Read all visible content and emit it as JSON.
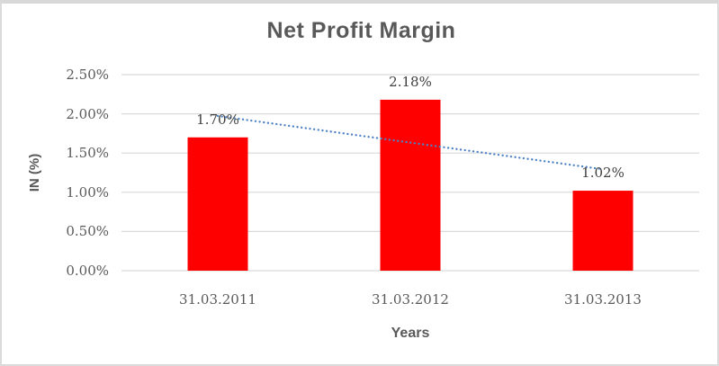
{
  "chart_data": {
    "type": "bar",
    "title": "Net Profit Margin",
    "xlabel": "Years",
    "ylabel": "IN (%)",
    "categories": [
      "31.03.2011",
      "31.03.2012",
      "31.03.2013"
    ],
    "values": [
      1.7,
      2.18,
      1.02
    ],
    "data_labels": [
      "1.70%",
      "2.18%",
      "1.02%"
    ],
    "ylim": [
      0,
      2.5
    ],
    "ytick_step": 0.5,
    "ytick_labels": [
      "0.00%",
      "0.50%",
      "1.00%",
      "1.50%",
      "2.00%",
      "2.50%"
    ],
    "grid": true,
    "legend_position": "none",
    "bar_color": "#FF0000",
    "trendline": {
      "type": "linear",
      "style": "dotted",
      "color": "#4E82C4"
    },
    "colors": {
      "gridline": "#D9D9D9",
      "title_text": "#595959",
      "axis_text": "#595959",
      "data_label_text": "#404040",
      "frame_border": "#D8D8D8"
    }
  }
}
